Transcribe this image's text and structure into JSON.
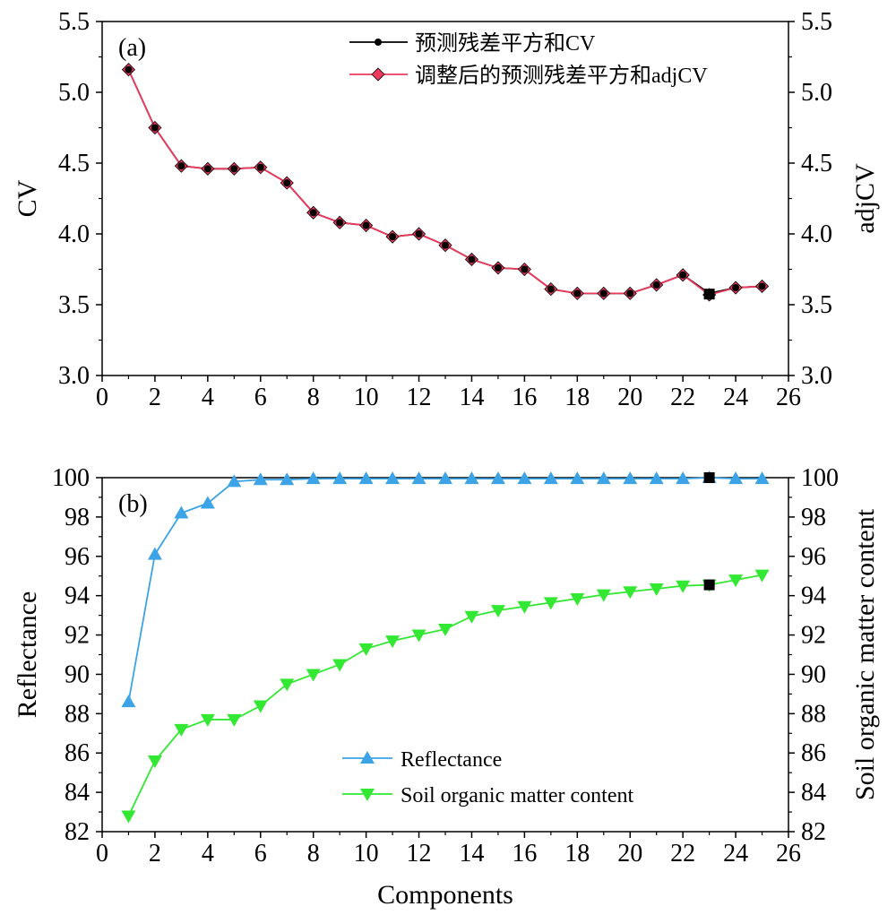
{
  "chart_data": [
    {
      "type": "line",
      "panel_label": "(a)",
      "xlabel": "",
      "ylabel": "CV",
      "ylabel_right": "adjCV",
      "xlim": [
        0,
        26
      ],
      "ylim": [
        3.0,
        5.5
      ],
      "x_ticks": [
        "0",
        "2",
        "4",
        "6",
        "8",
        "10",
        "12",
        "14",
        "16",
        "18",
        "20",
        "22",
        "24",
        "26"
      ],
      "y_ticks": [
        "3.0",
        "3.5",
        "4.0",
        "4.5",
        "5.0",
        "5.5"
      ],
      "y_ticks_right": [
        "3.0",
        "3.5",
        "4.0",
        "4.5",
        "5.0",
        "5.5"
      ],
      "legend_position": "top-right",
      "x": [
        1,
        2,
        3,
        4,
        5,
        6,
        7,
        8,
        9,
        10,
        11,
        12,
        13,
        14,
        15,
        16,
        17,
        18,
        19,
        20,
        21,
        22,
        23,
        24,
        25
      ],
      "series": [
        {
          "name": "预测残差平方和CV",
          "marker": "circle",
          "color": "#000000",
          "values": [
            5.16,
            4.75,
            4.48,
            4.46,
            4.46,
            4.47,
            4.36,
            4.15,
            4.08,
            4.06,
            3.98,
            4.0,
            3.92,
            3.82,
            3.76,
            3.75,
            3.61,
            3.58,
            3.58,
            3.58,
            3.64,
            3.71,
            3.58,
            3.62,
            3.63
          ]
        },
        {
          "name": "调整后的预测残差平方和adjCV",
          "marker": "diamond",
          "color": "#ee3a5f",
          "values": [
            5.16,
            4.75,
            4.48,
            4.46,
            4.46,
            4.47,
            4.36,
            4.15,
            4.08,
            4.06,
            3.98,
            4.0,
            3.92,
            3.82,
            3.76,
            3.75,
            3.61,
            3.58,
            3.58,
            3.58,
            3.64,
            3.71,
            3.57,
            3.62,
            3.63
          ]
        }
      ],
      "highlight": {
        "x": 23,
        "y": 3.575,
        "marker": "square",
        "color": "#000000"
      }
    },
    {
      "type": "line",
      "panel_label": "(b)",
      "xlabel": "Components",
      "ylabel": "Reflectance",
      "ylabel_right": "Soil organic matter content",
      "xlim": [
        0,
        26
      ],
      "ylim": [
        82,
        100
      ],
      "x_ticks": [
        "0",
        "2",
        "4",
        "6",
        "8",
        "10",
        "12",
        "14",
        "16",
        "18",
        "20",
        "22",
        "24",
        "26"
      ],
      "y_ticks": [
        "82",
        "84",
        "86",
        "88",
        "90",
        "92",
        "94",
        "96",
        "98",
        "100"
      ],
      "y_ticks_right": [
        "82",
        "84",
        "86",
        "88",
        "90",
        "92",
        "94",
        "96",
        "98",
        "100"
      ],
      "legend_position": "bottom-center",
      "x": [
        1,
        2,
        3,
        4,
        5,
        6,
        7,
        8,
        9,
        10,
        11,
        12,
        13,
        14,
        15,
        16,
        17,
        18,
        19,
        20,
        21,
        22,
        23,
        24,
        25
      ],
      "series": [
        {
          "name": "Reflectance",
          "marker": "triangle-up",
          "color": "#3ba3e6",
          "values": [
            88.6,
            96.1,
            98.2,
            98.7,
            99.8,
            99.9,
            99.9,
            99.95,
            99.95,
            99.95,
            99.95,
            99.95,
            99.95,
            99.95,
            99.95,
            99.95,
            99.95,
            99.95,
            99.95,
            99.95,
            99.95,
            99.95,
            100.0,
            99.95,
            99.95
          ]
        },
        {
          "name": "Soil organic matter content",
          "marker": "triangle-down",
          "color": "#33e833",
          "values": [
            82.8,
            85.6,
            87.2,
            87.7,
            87.7,
            88.4,
            89.5,
            90.0,
            90.5,
            91.3,
            91.7,
            92.0,
            92.3,
            92.95,
            93.25,
            93.45,
            93.65,
            93.85,
            94.05,
            94.2,
            94.35,
            94.5,
            94.55,
            94.8,
            95.05
          ]
        }
      ],
      "highlights": [
        {
          "x": 23,
          "y": 100.0,
          "marker": "square",
          "color": "#000000"
        },
        {
          "x": 23,
          "y": 94.55,
          "marker": "square",
          "color": "#000000"
        }
      ]
    }
  ]
}
